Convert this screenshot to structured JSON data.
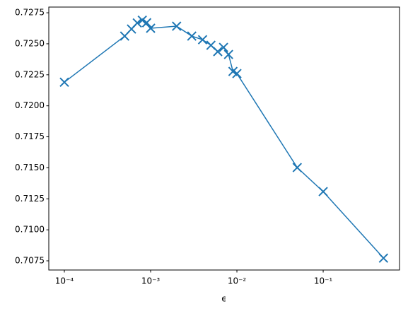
{
  "chart_data": {
    "type": "line",
    "x_label": "ϵ",
    "xlog": true,
    "marker": "x",
    "x": [
      0.0001,
      0.0005,
      0.0006,
      0.0007,
      0.0008,
      0.0009,
      0.001,
      0.002,
      0.003,
      0.004,
      0.005,
      0.006,
      0.007,
      0.008,
      0.009,
      0.01,
      0.05,
      0.1,
      0.5
    ],
    "series": [
      {
        "color": "#1f77b4",
        "values": [
          0.7219,
          0.72562,
          0.72619,
          0.72668,
          0.7269,
          0.7267,
          0.72625,
          0.72642,
          0.72562,
          0.72533,
          0.72488,
          0.72437,
          0.72471,
          0.72414,
          0.72277,
          0.7226,
          0.71502,
          0.71308,
          0.70772
        ]
      }
    ],
    "xlim": [
      6.6e-05,
      0.767
    ],
    "ylim": [
      0.70676,
      0.72796
    ],
    "xticks": [
      {
        "value": 0.0001,
        "label": "10⁻⁴"
      },
      {
        "value": 0.001,
        "label": "10⁻³"
      },
      {
        "value": 0.01,
        "label": "10⁻²"
      },
      {
        "value": 0.1,
        "label": "10⁻¹"
      }
    ],
    "yticks": [
      0.7075,
      {
        "value": 0.71,
        "label": "0.7100"
      },
      0.7125,
      {
        "value": 0.715,
        "label": "0.7150"
      },
      0.7175,
      {
        "value": 0.72,
        "label": "0.7200"
      },
      0.7225,
      {
        "value": 0.725,
        "label": "0.7250"
      },
      0.7275
    ]
  }
}
